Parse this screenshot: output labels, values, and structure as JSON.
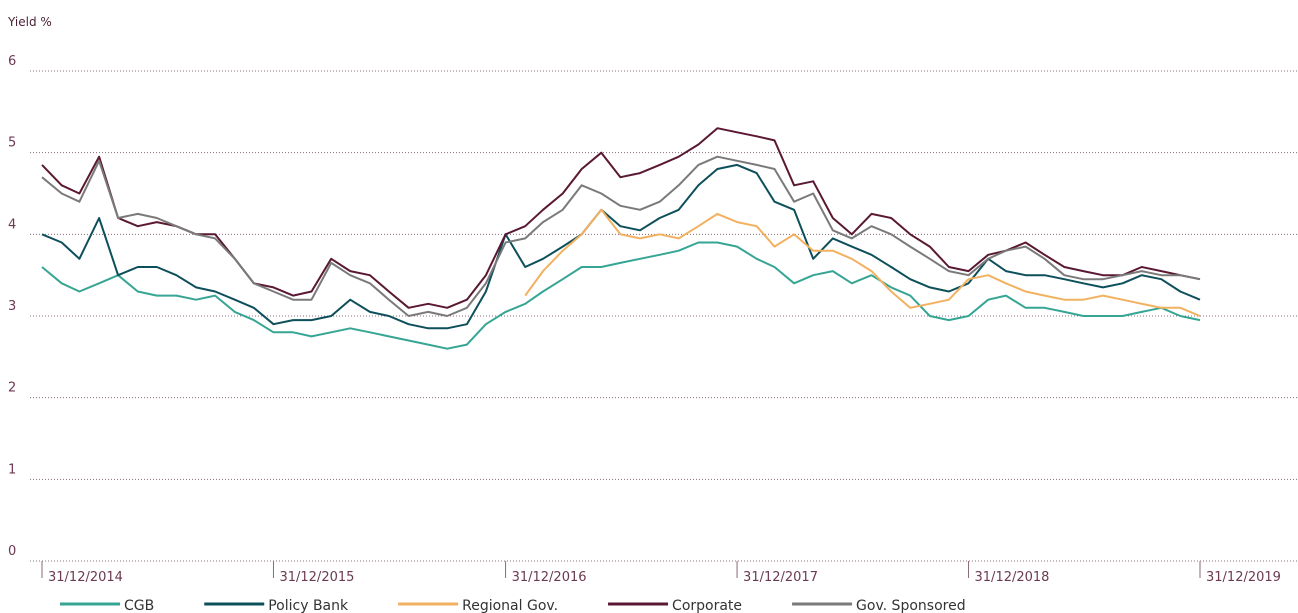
{
  "chart_data": {
    "type": "line",
    "y_label": "Yield %",
    "x": [
      "2014-12-31",
      "2015-01-31",
      "2015-02-28",
      "2015-03-31",
      "2015-04-30",
      "2015-05-31",
      "2015-06-30",
      "2015-07-31",
      "2015-08-31",
      "2015-09-30",
      "2015-10-31",
      "2015-11-30",
      "2015-12-31",
      "2016-01-31",
      "2016-02-29",
      "2016-03-31",
      "2016-04-30",
      "2016-05-31",
      "2016-06-30",
      "2016-07-31",
      "2016-08-31",
      "2016-09-30",
      "2016-10-31",
      "2016-11-30",
      "2016-12-31",
      "2017-01-31",
      "2017-02-28",
      "2017-03-31",
      "2017-04-30",
      "2017-05-31",
      "2017-06-30",
      "2017-07-31",
      "2017-08-31",
      "2017-09-30",
      "2017-10-31",
      "2017-11-30",
      "2017-12-31",
      "2018-01-31",
      "2018-02-28",
      "2018-03-31",
      "2018-04-30",
      "2018-05-31",
      "2018-06-30",
      "2018-07-31",
      "2018-08-31",
      "2018-09-30",
      "2018-10-31",
      "2018-11-30",
      "2018-12-31",
      "2019-01-31",
      "2019-02-28",
      "2019-03-31",
      "2019-04-30",
      "2019-05-31",
      "2019-06-30",
      "2019-07-31",
      "2019-08-31",
      "2019-09-30",
      "2019-10-31",
      "2019-11-30",
      "2019-12-31"
    ],
    "series": [
      {
        "name": "CGB",
        "color": "#36a594",
        "values": [
          3.6,
          3.4,
          3.3,
          3.4,
          3.5,
          3.3,
          3.25,
          3.25,
          3.2,
          3.25,
          3.05,
          2.95,
          2.8,
          2.8,
          2.75,
          2.8,
          2.85,
          2.8,
          2.75,
          2.7,
          2.65,
          2.6,
          2.65,
          2.9,
          3.05,
          3.15,
          3.3,
          3.45,
          3.6,
          3.6,
          3.65,
          3.7,
          3.75,
          3.8,
          3.9,
          3.9,
          3.85,
          3.7,
          3.6,
          3.4,
          3.5,
          3.55,
          3.4,
          3.5,
          3.35,
          3.25,
          3.0,
          2.95,
          3.0,
          3.2,
          3.25,
          3.1,
          3.1,
          3.05,
          3.0,
          3.0,
          3.0,
          3.05,
          3.1,
          3.0,
          2.95
        ]
      },
      {
        "name": "Policy Bank",
        "color": "#0d4f5a",
        "values": [
          4.0,
          3.9,
          3.7,
          4.2,
          3.5,
          3.6,
          3.6,
          3.5,
          3.35,
          3.3,
          3.2,
          3.1,
          2.9,
          2.95,
          2.95,
          3.0,
          3.2,
          3.05,
          3.0,
          2.9,
          2.85,
          2.85,
          2.9,
          3.3,
          4.0,
          3.6,
          3.7,
          3.85,
          4.0,
          4.3,
          4.1,
          4.05,
          4.2,
          4.3,
          4.6,
          4.8,
          4.85,
          4.75,
          4.4,
          4.3,
          3.7,
          3.95,
          3.85,
          3.75,
          3.6,
          3.45,
          3.35,
          3.3,
          3.4,
          3.7,
          3.55,
          3.5,
          3.5,
          3.45,
          3.4,
          3.35,
          3.4,
          3.5,
          3.45,
          3.3,
          3.2
        ]
      },
      {
        "name": "Regional Gov.",
        "color": "#f2b160",
        "values": [
          null,
          null,
          null,
          null,
          null,
          null,
          null,
          null,
          null,
          null,
          null,
          null,
          null,
          null,
          null,
          null,
          null,
          null,
          null,
          null,
          null,
          null,
          null,
          null,
          null,
          3.25,
          3.55,
          3.8,
          4.0,
          4.3,
          4.0,
          3.95,
          4.0,
          3.95,
          4.1,
          4.25,
          4.15,
          4.1,
          3.85,
          4.0,
          3.8,
          3.8,
          3.7,
          3.55,
          3.3,
          3.1,
          3.15,
          3.2,
          3.45,
          3.5,
          3.4,
          3.3,
          3.25,
          3.2,
          3.2,
          3.25,
          3.2,
          3.15,
          3.1,
          3.1,
          3.0
        ]
      },
      {
        "name": "Corporate",
        "color": "#5a1833",
        "values": [
          4.85,
          4.6,
          4.5,
          4.95,
          4.2,
          4.1,
          4.15,
          4.1,
          4.0,
          4.0,
          3.7,
          3.4,
          3.35,
          3.25,
          3.3,
          3.7,
          3.55,
          3.5,
          3.3,
          3.1,
          3.15,
          3.1,
          3.2,
          3.5,
          4.0,
          4.1,
          4.3,
          4.5,
          4.8,
          5.0,
          4.7,
          4.75,
          4.85,
          4.95,
          5.1,
          5.3,
          5.25,
          5.2,
          5.15,
          4.6,
          4.65,
          4.2,
          4.0,
          4.25,
          4.2,
          4.0,
          3.85,
          3.6,
          3.55,
          3.75,
          3.8,
          3.9,
          3.75,
          3.6,
          3.55,
          3.5,
          3.5,
          3.6,
          3.55,
          3.5,
          3.45
        ]
      },
      {
        "name": "Gov. Sponsored",
        "color": "#7a7a7a",
        "values": [
          4.7,
          4.5,
          4.4,
          4.9,
          4.2,
          4.25,
          4.2,
          4.1,
          4.0,
          3.95,
          3.7,
          3.4,
          3.3,
          3.2,
          3.2,
          3.65,
          3.5,
          3.4,
          3.2,
          3.0,
          3.05,
          3.0,
          3.1,
          3.4,
          3.9,
          3.95,
          4.15,
          4.3,
          4.6,
          4.5,
          4.35,
          4.3,
          4.4,
          4.6,
          4.85,
          4.95,
          4.9,
          4.85,
          4.8,
          4.4,
          4.5,
          4.05,
          3.95,
          4.1,
          4.0,
          3.85,
          3.7,
          3.55,
          3.5,
          3.7,
          3.8,
          3.85,
          3.7,
          3.5,
          3.45,
          3.45,
          3.5,
          3.55,
          3.5,
          3.5,
          3.45
        ]
      }
    ],
    "xlim": [
      "2014-12-31",
      "2019-12-31"
    ],
    "xticks": [
      {
        "value": "2014-12-31",
        "label": "31/12/2014"
      },
      {
        "value": "2015-12-31",
        "label": "31/12/2015"
      },
      {
        "value": "2016-12-31",
        "label": "31/12/2016"
      },
      {
        "value": "2017-12-31",
        "label": "31/12/2017"
      },
      {
        "value": "2018-12-31",
        "label": "31/12/2018"
      },
      {
        "value": "2019-12-31",
        "label": "31/12/2019"
      }
    ],
    "ylim": [
      0,
      6
    ],
    "yticks": [
      0,
      1,
      2,
      3,
      4,
      5,
      6
    ],
    "grid": true,
    "legend": "bottom"
  }
}
